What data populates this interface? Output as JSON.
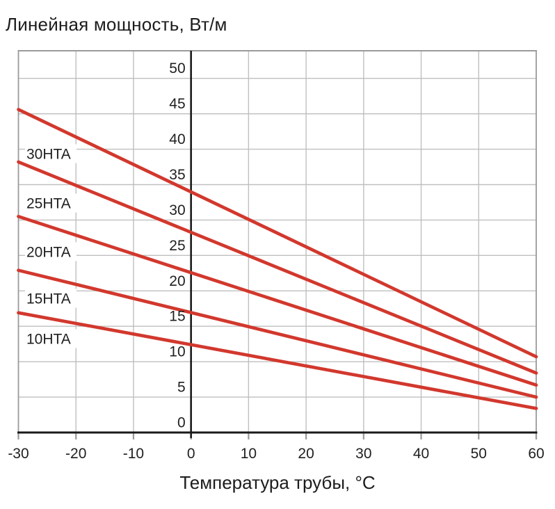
{
  "figure": {
    "title": "Линейная мощность, Вт/м",
    "xlabel": "Температура трубы, °C"
  },
  "chart_data": {
    "type": "line",
    "title": "Линейная мощность, Вт/м",
    "xlabel": "Температура трубы, °C",
    "ylabel": "Линейная мощность, Вт/м",
    "x": [
      -30,
      60
    ],
    "series": [
      {
        "name": "30HTA",
        "values": [
          45.6,
          10.7
        ]
      },
      {
        "name": "25HTA",
        "values": [
          38.2,
          8.4
        ]
      },
      {
        "name": "20HTA",
        "values": [
          30.5,
          6.7
        ]
      },
      {
        "name": "15HTA",
        "values": [
          22.9,
          5.0
        ]
      },
      {
        "name": "10HTA",
        "values": [
          16.9,
          3.4
        ]
      }
    ],
    "x_ticks": [
      -30,
      -20,
      -10,
      0,
      10,
      20,
      30,
      40,
      50,
      60
    ],
    "y_ticks": [
      0,
      5,
      10,
      15,
      20,
      25,
      30,
      35,
      40,
      45,
      50
    ],
    "xlim": [
      -30,
      60
    ],
    "ylim": [
      0,
      54
    ],
    "grid": true,
    "legend_position": "inline-left",
    "colors": {
      "series_line": "#d2382d",
      "gridline": "#bfbfbf",
      "frame": "#9a9a9a",
      "axis": "#1a1a1a",
      "text": "#1f1f1f"
    }
  }
}
